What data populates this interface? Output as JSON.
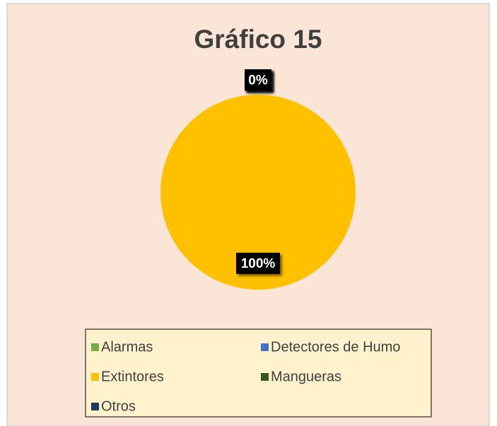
{
  "chart_data": {
    "type": "pie",
    "title": "Gráfico 15",
    "categories": [
      "Alarmas",
      "Detectores de Humo",
      "Extintores",
      "Mangueras",
      "Otros"
    ],
    "values": [
      0,
      0,
      100,
      0,
      0
    ],
    "value_labels": [
      "0%",
      "0%",
      "100%",
      "0%",
      "0%"
    ],
    "colors": [
      "#70ad47",
      "#4472c4",
      "#ffc000",
      "#375623",
      "#203864"
    ]
  }
}
